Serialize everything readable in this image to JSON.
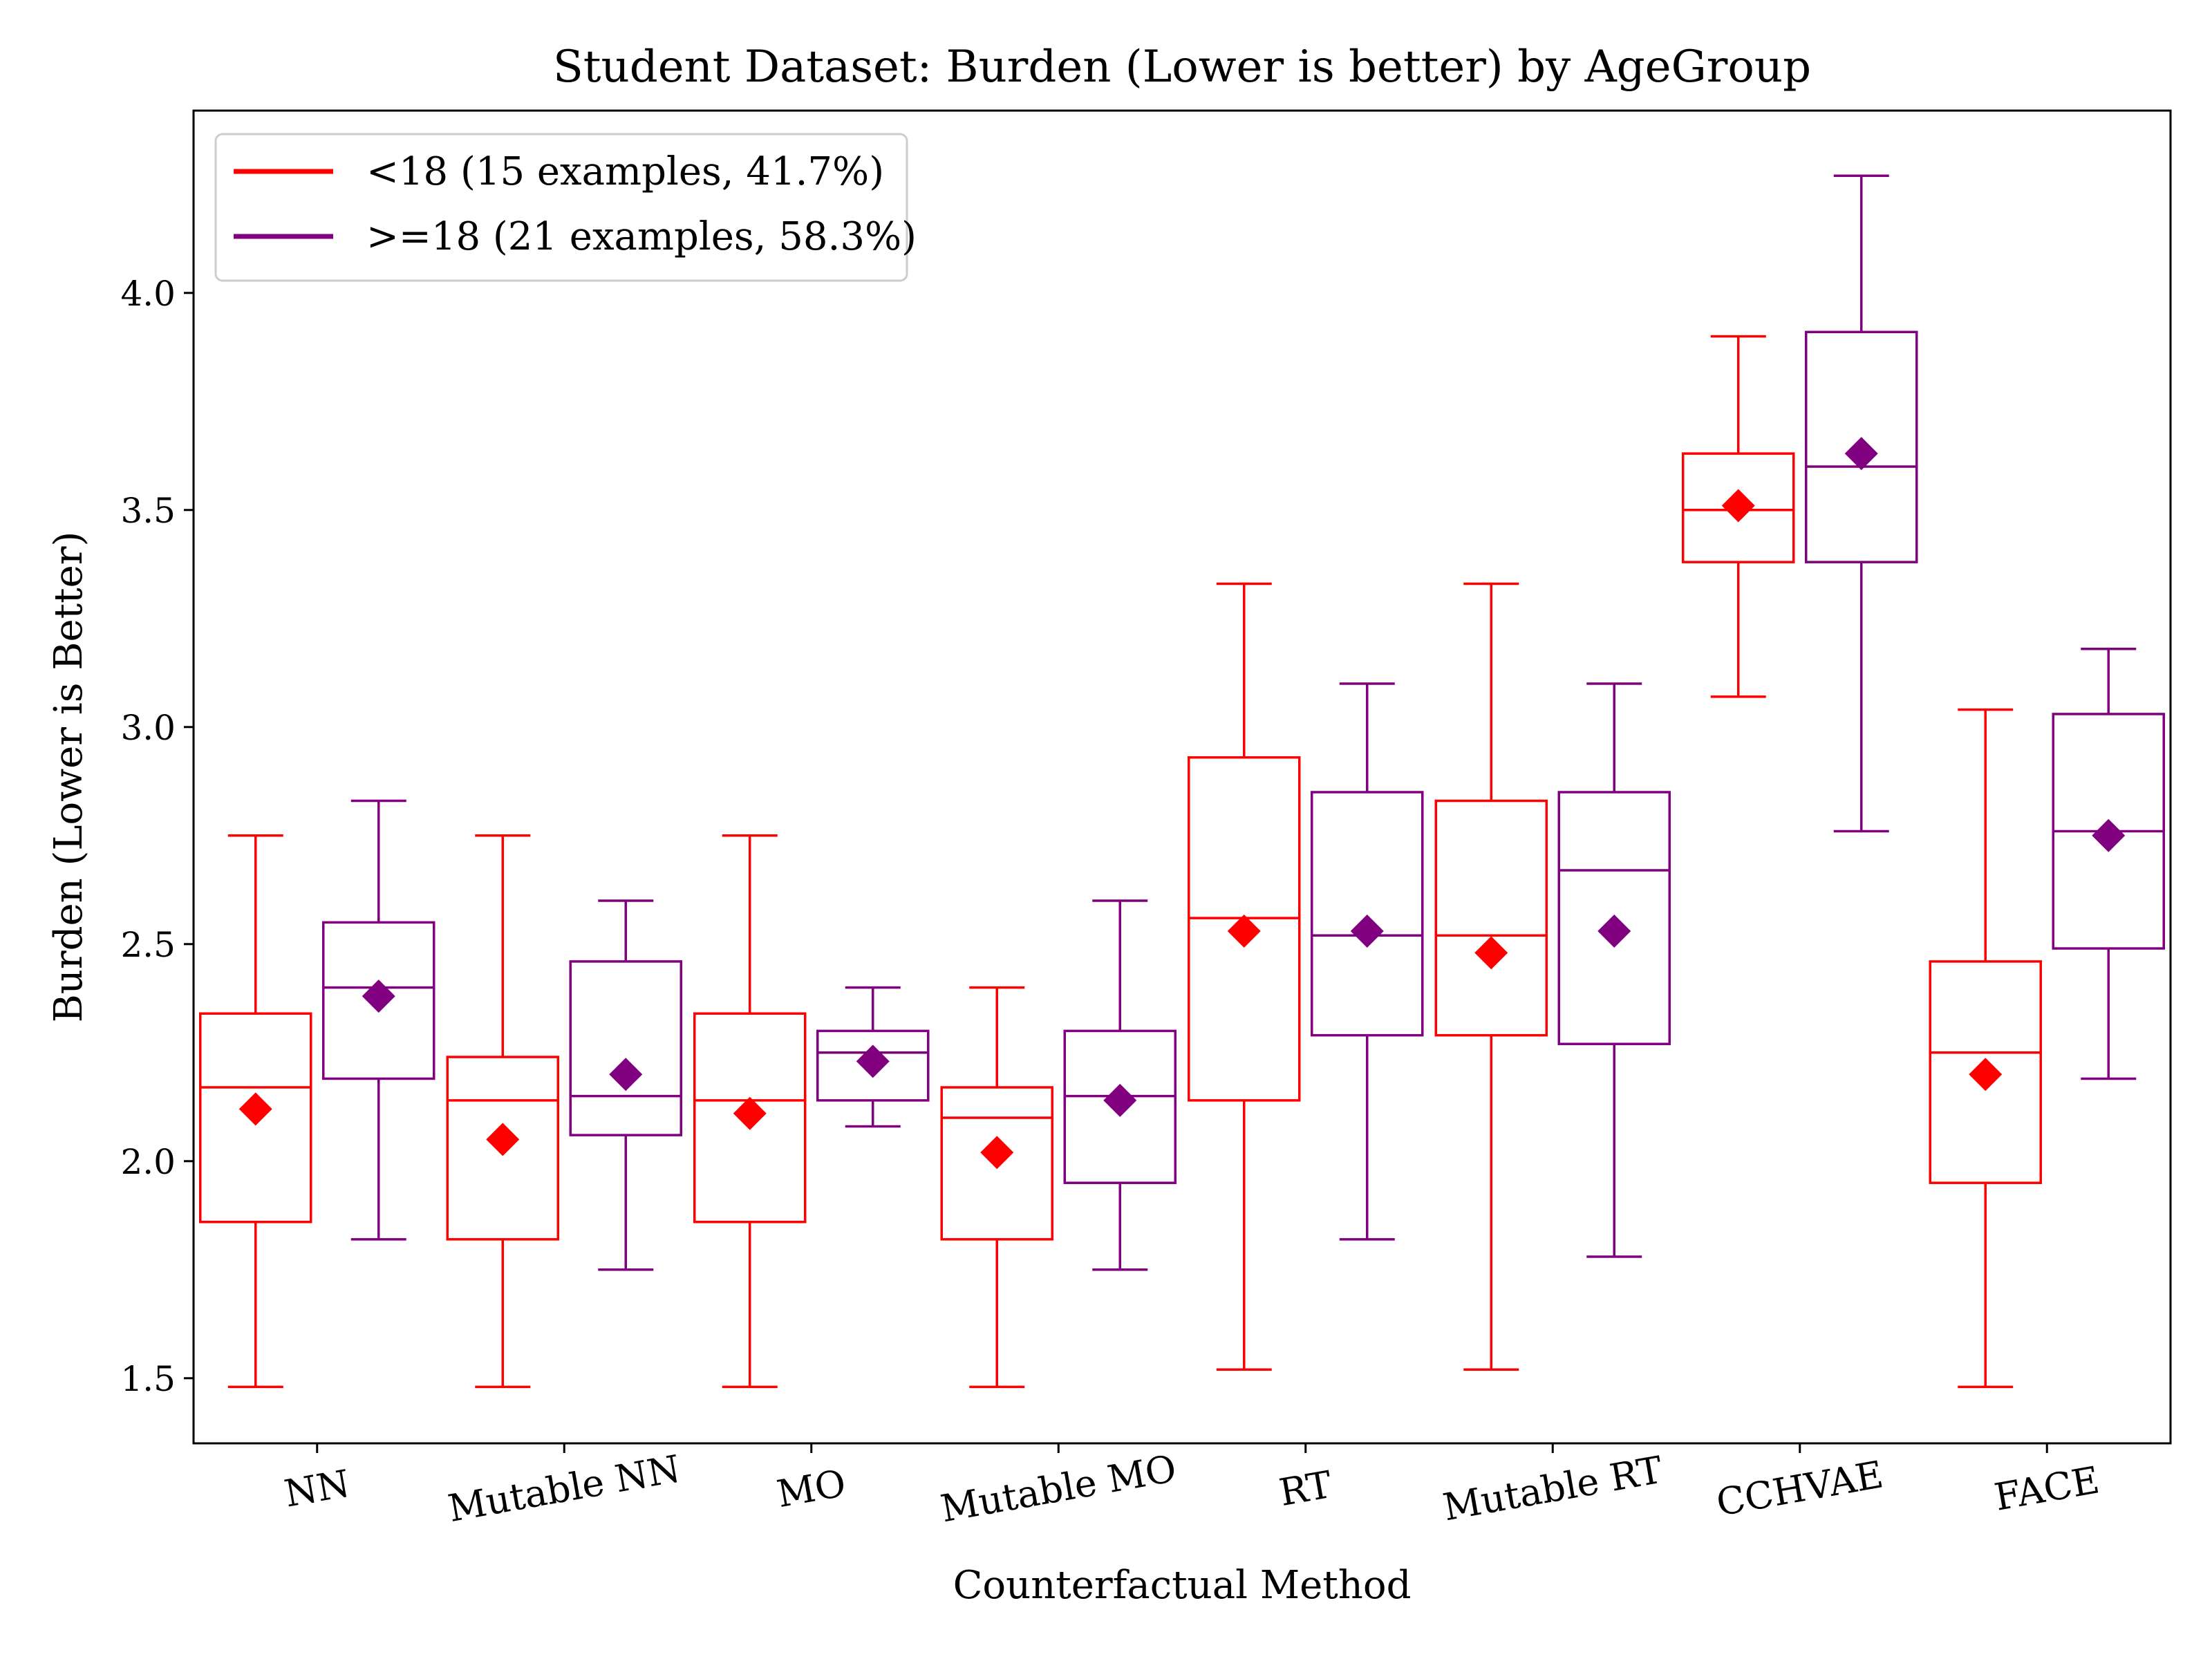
{
  "chart_data": {
    "type": "box",
    "title": "Student Dataset: Burden (Lower is better) by AgeGroup",
    "xlabel": "Counterfactual Method",
    "ylabel": "Burden (Lower is Better)",
    "ylim": [
      1.35,
      4.42
    ],
    "yticks": [
      1.5,
      2.0,
      2.5,
      3.0,
      3.5,
      4.0
    ],
    "ytick_labels": [
      "1.5",
      "2.0",
      "2.5",
      "3.0",
      "3.5",
      "4.0"
    ],
    "categories": [
      "NN",
      "Mutable NN",
      "MO",
      "Mutable MO",
      "RT",
      "Mutable RT",
      "CCHVAE",
      "FACE"
    ],
    "legend_position": "top-left",
    "series": [
      {
        "name": "<18 (15 examples, 41.7%)",
        "color": "#ff0000",
        "boxes": [
          {
            "whislo": 1.48,
            "q1": 1.86,
            "med": 2.17,
            "q3": 2.34,
            "whishi": 2.75,
            "mean": 2.12
          },
          {
            "whislo": 1.48,
            "q1": 1.82,
            "med": 2.14,
            "q3": 2.24,
            "whishi": 2.75,
            "mean": 2.05
          },
          {
            "whislo": 1.48,
            "q1": 1.86,
            "med": 2.14,
            "q3": 2.34,
            "whishi": 2.75,
            "mean": 2.11
          },
          {
            "whislo": 1.48,
            "q1": 1.82,
            "med": 2.1,
            "q3": 2.17,
            "whishi": 2.4,
            "mean": 2.02
          },
          {
            "whislo": 1.52,
            "q1": 2.14,
            "med": 2.56,
            "q3": 2.93,
            "whishi": 3.33,
            "mean": 2.53
          },
          {
            "whislo": 1.52,
            "q1": 2.29,
            "med": 2.52,
            "q3": 2.83,
            "whishi": 3.33,
            "mean": 2.48
          },
          {
            "whislo": 3.07,
            "q1": 3.38,
            "med": 3.5,
            "q3": 3.63,
            "whishi": 3.9,
            "mean": 3.51
          },
          {
            "whislo": 1.48,
            "q1": 1.95,
            "med": 2.25,
            "q3": 2.46,
            "whishi": 3.04,
            "mean": 2.2
          }
        ]
      },
      {
        "name": ">=18 (21 examples, 58.3%)",
        "color": "#800080",
        "boxes": [
          {
            "whislo": 1.82,
            "q1": 2.19,
            "med": 2.4,
            "q3": 2.55,
            "whishi": 2.83,
            "mean": 2.38
          },
          {
            "whislo": 1.75,
            "q1": 2.06,
            "med": 2.15,
            "q3": 2.46,
            "whishi": 2.6,
            "mean": 2.2
          },
          {
            "whislo": 2.08,
            "q1": 2.14,
            "med": 2.25,
            "q3": 2.3,
            "whishi": 2.4,
            "mean": 2.23
          },
          {
            "whislo": 1.75,
            "q1": 1.95,
            "med": 2.15,
            "q3": 2.3,
            "whishi": 2.6,
            "mean": 2.14
          },
          {
            "whislo": 1.82,
            "q1": 2.29,
            "med": 2.52,
            "q3": 2.85,
            "whishi": 3.1,
            "mean": 2.53
          },
          {
            "whislo": 1.78,
            "q1": 2.27,
            "med": 2.67,
            "q3": 2.85,
            "whishi": 3.1,
            "mean": 2.53
          },
          {
            "whislo": 2.76,
            "q1": 3.38,
            "med": 3.6,
            "q3": 3.91,
            "whishi": 4.27,
            "mean": 3.63
          },
          {
            "whislo": 2.19,
            "q1": 2.49,
            "med": 2.76,
            "q3": 3.03,
            "whishi": 3.18,
            "mean": 2.75
          }
        ]
      }
    ]
  }
}
